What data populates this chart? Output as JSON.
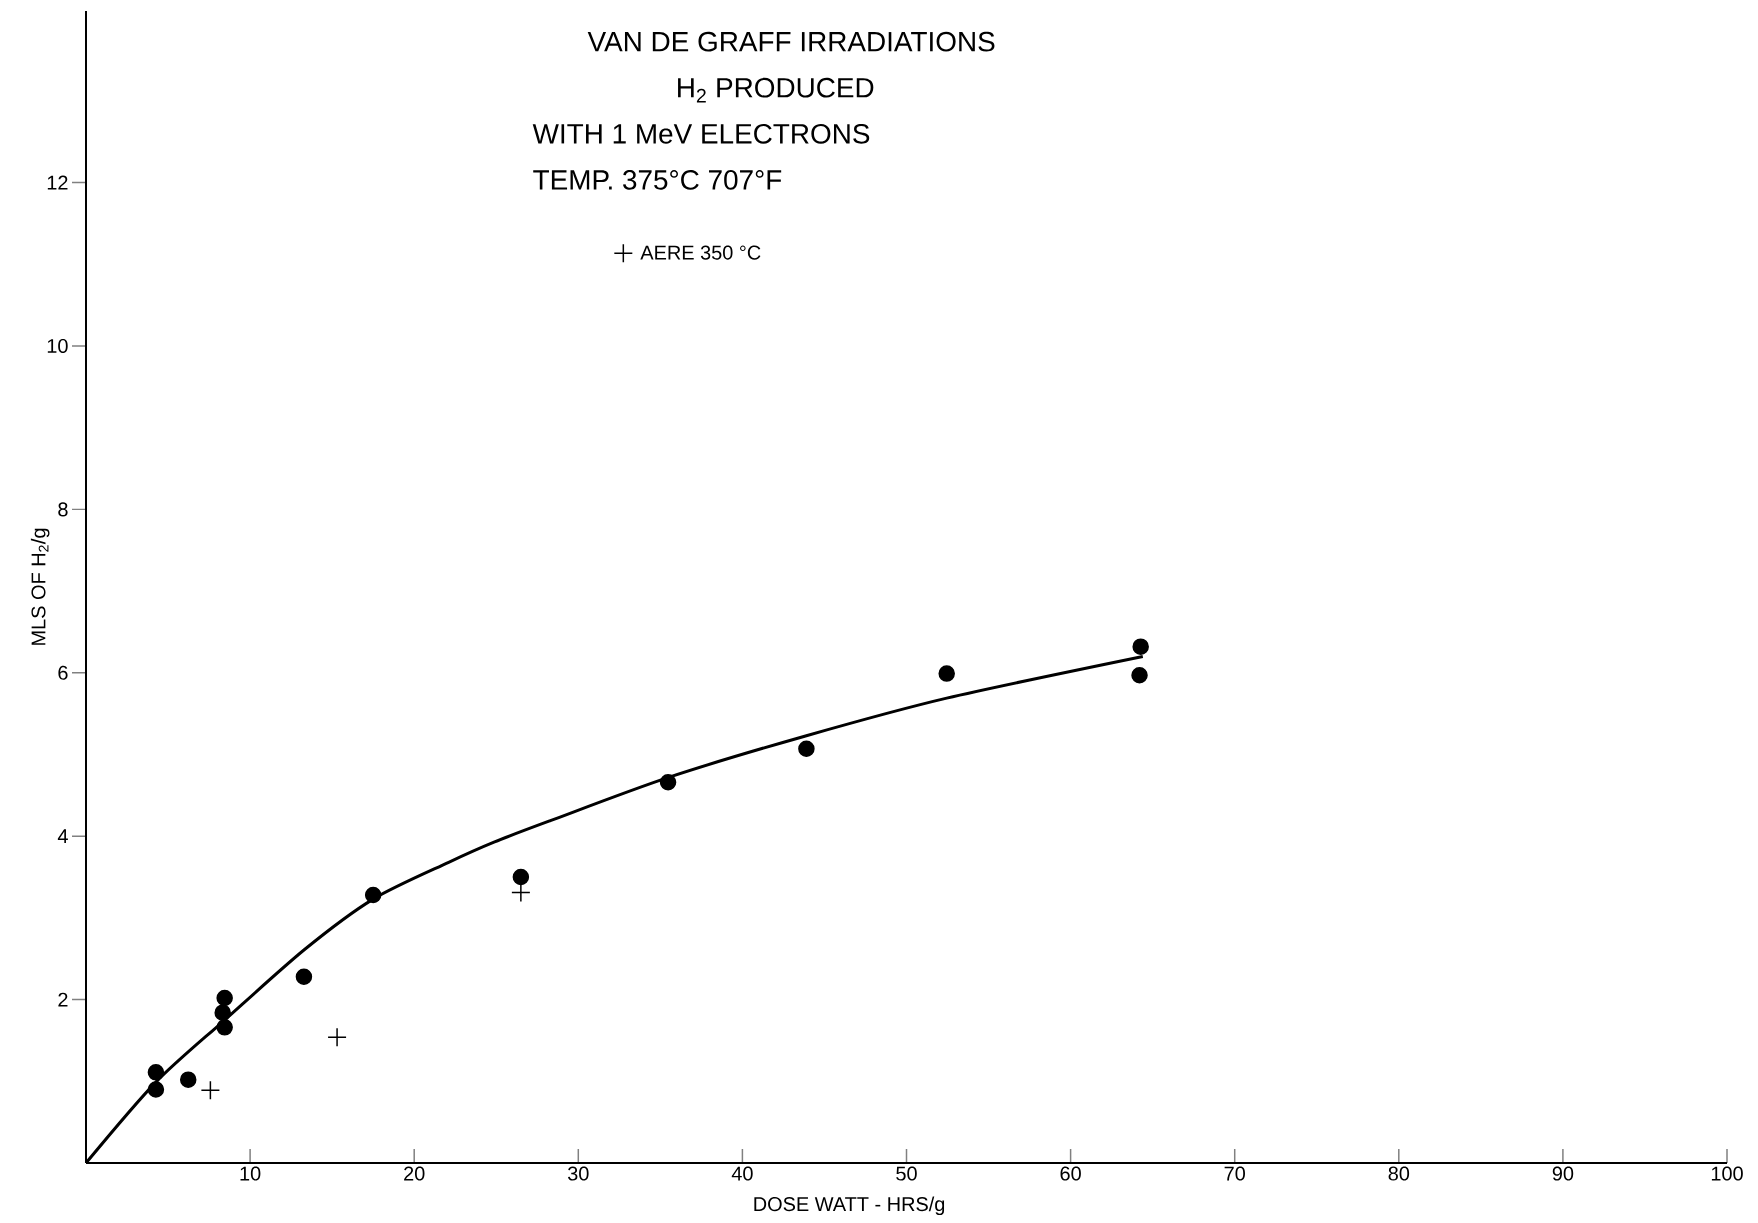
{
  "chart_data": {
    "type": "scatter",
    "title": "VAN DE GRAFF IRRADIATIONS",
    "subtitle": "H$_{2}$ PRODUCED",
    "annotations": [
      "WITH 1 MeV ELECTRONS",
      "TEMP. 375°C 707°F"
    ],
    "xlabel": "DOSE WATT - HRS/g",
    "ylabel": "MLS OF H$_{2}$/g",
    "xlim": [
      0,
      100
    ],
    "ylim": [
      0,
      14.1
    ],
    "xticks": [
      10,
      20,
      30,
      40,
      50,
      60,
      70,
      80,
      90,
      100
    ],
    "yticks": [
      2,
      4,
      6,
      8,
      10,
      12
    ],
    "grid": false,
    "legend": "top",
    "series": [
      {
        "marker": "circle",
        "color": "#000000",
        "x": [
          4.26,
          4.26,
          6.23,
          8.45,
          8.33,
          8.45,
          13.28,
          17.5,
          26.5,
          35.47,
          43.9,
          52.45,
          64.2,
          64.27
        ],
        "values": [
          1.11,
          0.9,
          1.02,
          2.02,
          1.84,
          1.66,
          2.28,
          3.28,
          3.5,
          4.66,
          5.07,
          5.99,
          5.97,
          6.32
        ]
      },
      {
        "marker": "cross",
        "name": "AERE 350 °C",
        "color": "#000000",
        "x": [
          7.58,
          15.3,
          26.5
        ],
        "values": [
          0.89,
          1.54,
          3.31
        ]
      },
      {
        "type": "line",
        "marker": "none",
        "line_style": "solid",
        "color": "#000000",
        "x": [
          0,
          4.26,
          8.45,
          13.3,
          17.5,
          22.1,
          24.9,
          28.3,
          35.5,
          43.9,
          52.45,
          64.4
        ],
        "values": [
          0,
          0.99,
          1.75,
          2.61,
          3.23,
          3.68,
          3.93,
          4.19,
          4.72,
          5.23,
          5.69,
          6.2
        ]
      }
    ]
  }
}
